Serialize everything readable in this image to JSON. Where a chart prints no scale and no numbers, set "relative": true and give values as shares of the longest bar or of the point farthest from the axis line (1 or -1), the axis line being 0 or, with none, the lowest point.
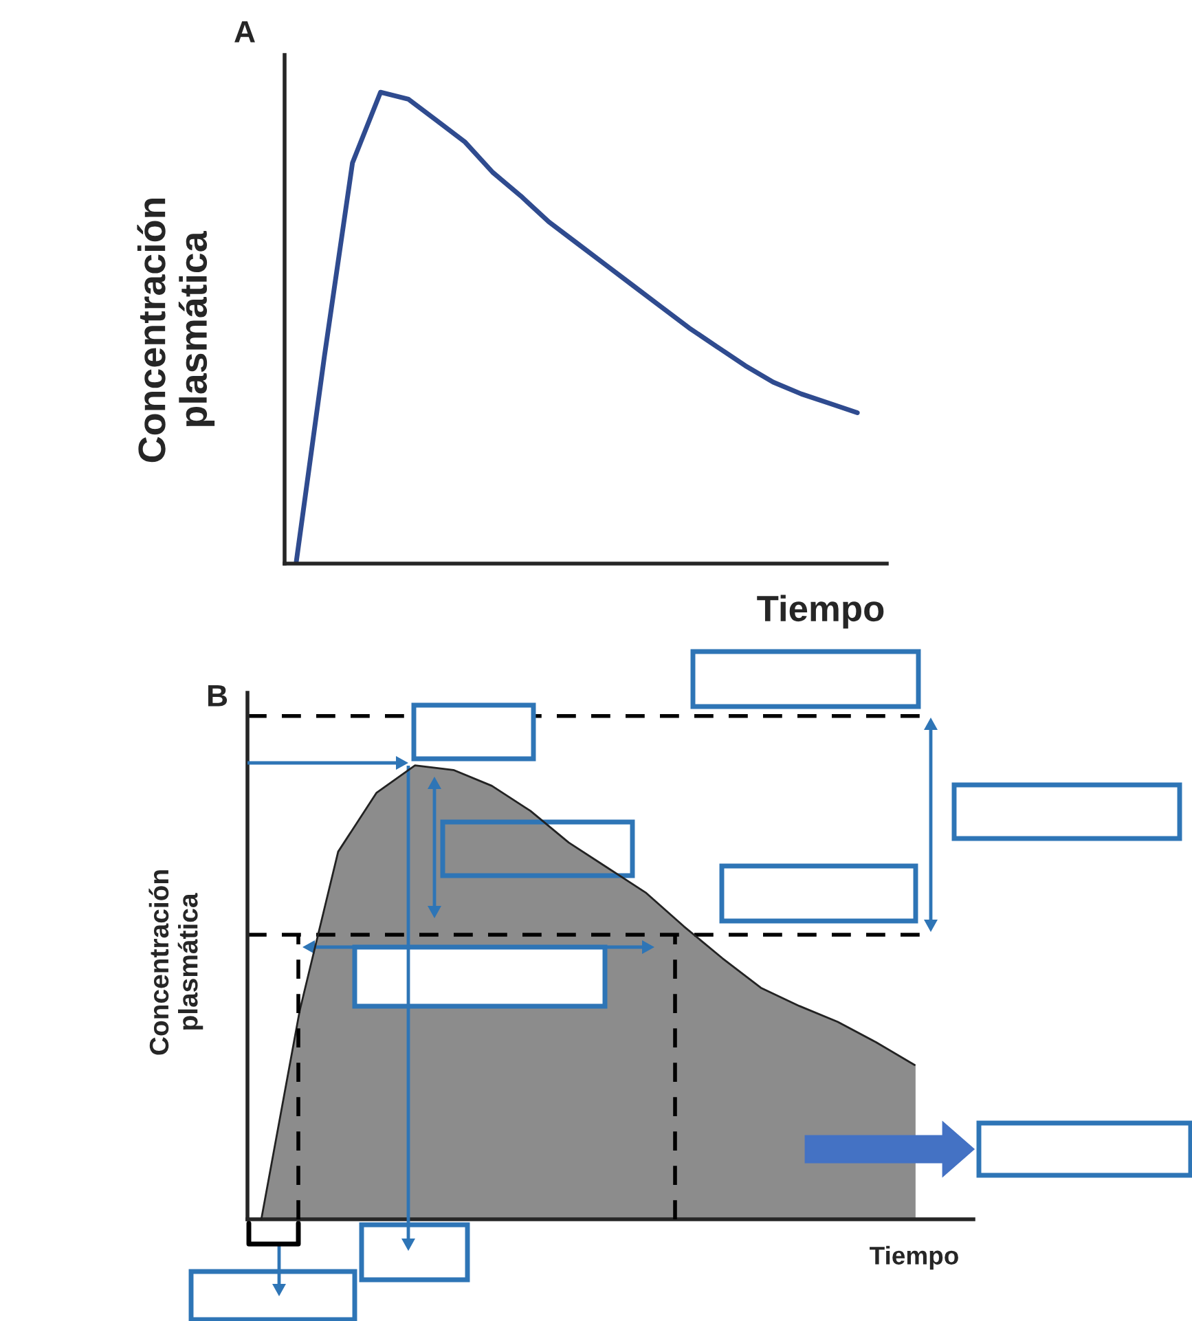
{
  "chart_data": [
    {
      "type": "line",
      "title": "A",
      "xlabel": "Tiempo",
      "ylabel": "Concentración\nplasmática",
      "relative": true,
      "color": "#2f4b8f",
      "categories": [
        null,
        null,
        null,
        null,
        null,
        null,
        null,
        null,
        null,
        null,
        null,
        null,
        null,
        null,
        null,
        null,
        null,
        null,
        null,
        null,
        null
      ],
      "values": [
        0.005,
        0.44,
        0.85,
        1.0,
        0.985,
        0.94,
        0.895,
        0.83,
        0.78,
        0.725,
        0.68,
        0.635,
        0.59,
        0.545,
        0.5,
        0.46,
        0.42,
        0.385,
        0.36,
        0.34,
        0.32
      ]
    },
    {
      "type": "area",
      "title": "B",
      "xlabel": "Tiempo",
      "ylabel": "Concentración\nplasmática",
      "relative": true,
      "color": "#8c8c8c",
      "categories": [
        null,
        null,
        null,
        null,
        null,
        null,
        null,
        null,
        null,
        null,
        null,
        null,
        null,
        null,
        null,
        null,
        null,
        null
      ],
      "values": [
        0.0,
        0.46,
        0.81,
        0.94,
        1.0,
        0.99,
        0.955,
        0.9,
        0.83,
        0.775,
        0.72,
        0.645,
        0.575,
        0.51,
        0.47,
        0.435,
        0.39,
        0.34
      ],
      "ref_lines": [
        {
          "axis": "y",
          "value": 1.109,
          "line_style": "dashed",
          "color": "#000000"
        },
        {
          "axis": "y",
          "value": 0.627,
          "line_style": "dashed",
          "color": "#000000"
        }
      ]
    }
  ]
}
